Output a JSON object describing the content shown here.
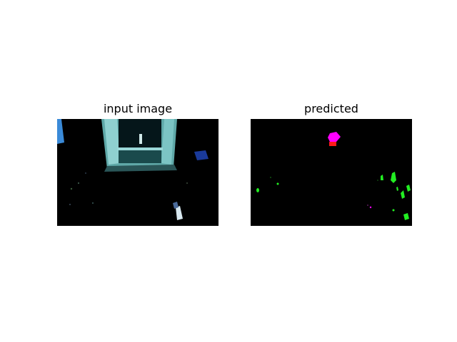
{
  "figure": {
    "panels": [
      {
        "title": "input image",
        "content": "photo"
      },
      {
        "title": "predicted",
        "content": "segmentation-mask"
      }
    ]
  },
  "colors": {
    "background": "#ffffff",
    "panel_background": "#000000",
    "door_frame": "#7cc4c4",
    "mask_magenta": "#ff00ff",
    "mask_red": "#ff1a1a",
    "mask_green": "#22ee22",
    "window_blue": "#3a8ad8"
  }
}
